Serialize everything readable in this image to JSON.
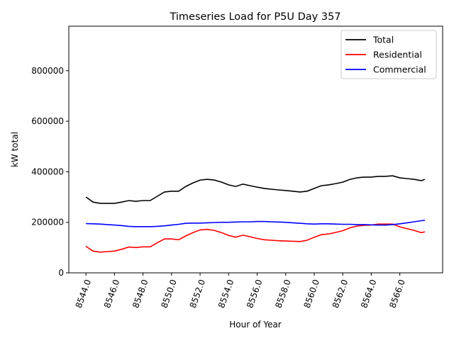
{
  "chart_data": {
    "type": "line",
    "title": "Timeseries Load for P5U   Day 357",
    "xlabel": "Hour of Year",
    "ylabel": "kW total",
    "xlim": [
      8542.8,
      8569.0
    ],
    "ylim": [
      0,
      976000
    ],
    "x_ticks": [
      8544,
      8546,
      8548,
      8550,
      8552,
      8554,
      8556,
      8558,
      8560,
      8562,
      8564,
      8566
    ],
    "x_tick_labels": [
      "8544.0",
      "8546.0",
      "8548.0",
      "8550.0",
      "8552.0",
      "8554.0",
      "8556.0",
      "8558.0",
      "8560.0",
      "8562.0",
      "8564.0",
      "8566.0"
    ],
    "y_ticks": [
      0,
      200000,
      400000,
      600000,
      800000
    ],
    "y_tick_labels": [
      "0",
      "200000",
      "400000",
      "600000",
      "800000"
    ],
    "grid": false,
    "legend_position": "top-right",
    "x": [
      8544,
      8544.5,
      8545,
      8545.5,
      8546,
      8546.5,
      8547,
      8547.5,
      8548,
      8548.5,
      8549,
      8549.5,
      8550,
      8550.5,
      8551,
      8551.5,
      8552,
      8552.5,
      8553,
      8553.5,
      8554,
      8554.5,
      8555,
      8555.5,
      8556,
      8556.5,
      8557,
      8557.5,
      8558,
      8558.5,
      8559,
      8559.5,
      8560,
      8560.5,
      8561,
      8561.5,
      8562,
      8562.5,
      8563,
      8563.5,
      8564,
      8564.5,
      8565,
      8565.5,
      8566,
      8566.5,
      8567,
      8567.5,
      8567.75
    ],
    "series": [
      {
        "name": "Total",
        "color": "#000000",
        "values": [
          300000,
          280000,
          275000,
          275000,
          275000,
          280000,
          286000,
          283000,
          286000,
          286000,
          303000,
          320000,
          323000,
          323000,
          342000,
          356000,
          367000,
          370000,
          367000,
          359000,
          348000,
          342000,
          351000,
          345000,
          339000,
          334000,
          331000,
          328000,
          326000,
          323000,
          320000,
          323000,
          334000,
          345000,
          348000,
          353000,
          359000,
          370000,
          376000,
          379000,
          379000,
          382000,
          382000,
          384000,
          376000,
          373000,
          370000,
          365000,
          370000
        ]
      },
      {
        "name": "Residential",
        "color": "#ff0000",
        "values": [
          105000,
          86000,
          82000,
          84000,
          86000,
          93000,
          102000,
          100000,
          103000,
          103000,
          119000,
          134000,
          134000,
          131000,
          146000,
          159000,
          170000,
          172000,
          168000,
          159000,
          148000,
          141000,
          149000,
          143000,
          136000,
          131000,
          129000,
          127000,
          126000,
          125000,
          124000,
          129000,
          141000,
          151000,
          154000,
          160000,
          167000,
          178000,
          185000,
          188000,
          189000,
          193000,
          193000,
          193000,
          182000,
          175000,
          168000,
          159000,
          162000
        ]
      },
      {
        "name": "Commercial",
        "color": "#0000ff",
        "values": [
          195000,
          194000,
          193000,
          191000,
          189000,
          187000,
          184000,
          183000,
          183000,
          183000,
          184000,
          186000,
          189000,
          192000,
          196000,
          197000,
          197000,
          198000,
          199000,
          200000,
          200000,
          201000,
          202000,
          202000,
          203000,
          203000,
          202000,
          201000,
          200000,
          198000,
          196000,
          194000,
          193000,
          194000,
          194000,
          193000,
          192000,
          192000,
          191000,
          191000,
          190000,
          189000,
          189000,
          191000,
          194000,
          198000,
          202000,
          206000,
          208000
        ]
      }
    ]
  }
}
